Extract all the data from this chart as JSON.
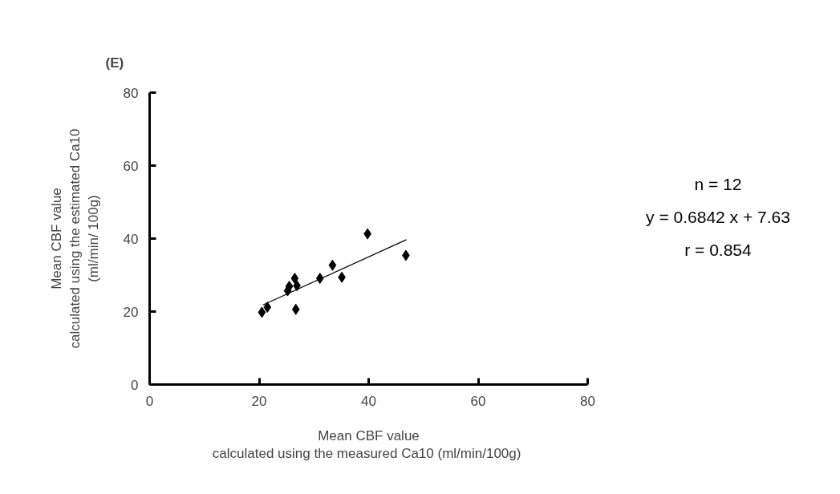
{
  "chart_data": {
    "type": "scatter",
    "title": "(E)",
    "xlabel": "Mean CBF value\ncalculated using the  measured Ca10 (ml/min/100g)",
    "ylabel": "Mean CBF value\ncalculated using the estimated Ca10\n(ml/min/ 100g)",
    "series": [
      {
        "color": "#000000",
        "marker": "diamond",
        "x": [
          20.5,
          21.5,
          25.2,
          25.5,
          26.5,
          26.9,
          26.7,
          31.1,
          33.4,
          35.1,
          39.8,
          46.8
        ],
        "values": [
          19.8,
          21.2,
          25.7,
          26.9,
          29.1,
          27.1,
          20.6,
          29.1,
          32.7,
          29.4,
          41.3,
          35.4
        ]
      },
      {
        "type": "line",
        "color": "#000000",
        "x": [
          20.7,
          46.9
        ],
        "values": [
          21.8,
          39.7
        ]
      }
    ],
    "annotations": [
      "n = 12",
      "y = 0.6842 x + 7.63",
      "r = 0.854"
    ],
    "xlim": [
      0,
      80
    ],
    "ylim": [
      0,
      80
    ],
    "xticks": [
      0,
      20,
      40,
      60,
      80
    ],
    "yticks": [
      0,
      20,
      40,
      60,
      80
    ],
    "grid": false
  }
}
